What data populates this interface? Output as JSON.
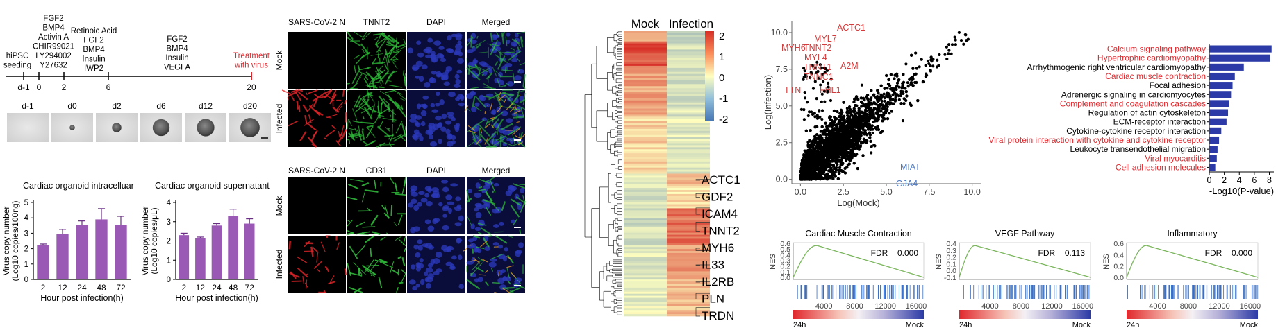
{
  "timeline": {
    "days": [
      "d-1",
      "0",
      "2",
      "6",
      "20"
    ],
    "day_positions": [
      -1,
      0,
      2,
      6,
      20
    ],
    "stage_labels": [
      [
        "hiPSC",
        "seeding"
      ],
      [
        "FGF2",
        "BMP4",
        "Activin A",
        "CHIR99021",
        "LY294002",
        "Y27632"
      ],
      [
        "Retinoic Acid",
        "FGF2",
        "BMP4",
        "Insulin",
        "IWP2"
      ],
      [
        "FGF2",
        "BMP4",
        "Insulin",
        "VEGFA"
      ]
    ],
    "treatment": [
      "Treatment",
      "with virus"
    ],
    "photo_labels": [
      "d-1",
      "d0",
      "d2",
      "d6",
      "d12",
      "d20"
    ],
    "photo_sizes": [
      0,
      0.18,
      0.32,
      0.58,
      0.6,
      0.66
    ]
  },
  "chart_data": [
    {
      "type": "bar",
      "title": "Cardiac organoid intracelluar",
      "ylabel": "Virus copy number",
      "ylabel2": "(Log10 copies/100ng)",
      "xlabel": "Hour post infection(h)",
      "categories": [
        "2",
        "12",
        "24",
        "48",
        "72"
      ],
      "values": [
        2.25,
        2.95,
        3.55,
        3.9,
        3.55
      ],
      "errors": [
        0.05,
        0.3,
        0.25,
        0.7,
        0.55
      ],
      "ylim": [
        0,
        5
      ],
      "yticks": [
        "0",
        "1",
        "2",
        "3",
        "4",
        "5"
      ],
      "bar_color": "#9b59b6"
    },
    {
      "type": "bar",
      "title": "Cardiac organoid supernatant",
      "ylabel": "Virus copy number",
      "ylabel2": "(Log10 copies/μL)",
      "xlabel": "Hour post infection(h)",
      "categories": [
        "2",
        "12",
        "24",
        "48",
        "72"
      ],
      "values": [
        2.3,
        2.15,
        2.8,
        3.3,
        2.9
      ],
      "errors": [
        0.1,
        0.05,
        0.1,
        0.35,
        0.25
      ],
      "ylim": [
        0,
        4
      ],
      "yticks": [
        "0",
        "1",
        "2",
        "3",
        "4"
      ],
      "bar_color": "#9b59b6"
    },
    {
      "type": "heatmap",
      "columns": [
        "Mock",
        "Infection"
      ],
      "colorbar_ticks": [
        "2",
        "1",
        "0",
        "-1",
        "-2"
      ],
      "colors": {
        "high": "#d73027",
        "mid": "#ffffbf",
        "low": "#4575b4"
      },
      "genes": [
        "ACTC1",
        "GDF2",
        "ICAM4",
        "TNNT2",
        "MYH6",
        "IL33",
        "IL2RB",
        "PLN",
        "TRDN"
      ],
      "bands": [
        {
          "from": 0.0,
          "to": 0.03,
          "mock": 0.6,
          "inf": -0.6
        },
        {
          "from": 0.03,
          "to": 0.12,
          "mock": 1.7,
          "inf": -0.5
        },
        {
          "from": 0.12,
          "to": 0.3,
          "mock": 0.9,
          "inf": -0.4
        },
        {
          "from": 0.3,
          "to": 0.5,
          "mock": 0.4,
          "inf": -0.3
        },
        {
          "from": 0.5,
          "to": 0.53,
          "mock": -0.1,
          "inf": 0.9
        },
        {
          "from": 0.53,
          "to": 0.62,
          "mock": -0.4,
          "inf": 0.3
        },
        {
          "from": 0.62,
          "to": 0.75,
          "mock": -0.5,
          "inf": 1.4
        },
        {
          "from": 0.75,
          "to": 0.87,
          "mock": -0.3,
          "inf": 1.0
        },
        {
          "from": 0.87,
          "to": 1.0,
          "mock": -0.2,
          "inf": 0.6
        }
      ],
      "gene_rows": [
        0.52,
        0.57,
        0.62,
        0.67,
        0.77,
        0.82,
        0.88,
        0.92,
        0.97
      ]
    },
    {
      "type": "scatter",
      "xlabel": "Log(Mock)",
      "ylabel": "Log(Infection)",
      "xlim": [
        -0.5,
        10.5
      ],
      "ylim": [
        -0.3,
        10.8
      ],
      "xticks": [
        "0.0",
        "2.5",
        "5.0",
        "7.5",
        "10.0"
      ],
      "yticks": [
        "0.0",
        "2.5",
        "5.0",
        "7.5",
        "10.0"
      ],
      "labels_up": [
        "ACTC1",
        "MYL7",
        "MYH6",
        "TNNT2",
        "MYL4",
        "TNNT1",
        "TNNC1",
        "A2M",
        "TTN",
        "FHL1"
      ],
      "labels_down": [
        "MIAT",
        "GJA4"
      ]
    },
    {
      "type": "bar",
      "orientation": "horizontal",
      "xlabel": "-Log10(P-value)",
      "xticks": [
        "0",
        "2",
        "4",
        "6",
        "8"
      ],
      "xlim": [
        0,
        8.6
      ],
      "categories": [
        "Calcium signaling pathway",
        "Hypertrophic cardiomyopathy",
        "Arrhythmogenic right ventricular cardiomyopathy",
        "Cardiac muscle contraction",
        "Focal adhesion",
        "Adrenergic signaling in cardiomyocytes",
        "Complement and coagulation cascades",
        "Regulation of actin cytoskeleton",
        "ECM-receptor interaction",
        "Cytokine-cytokine receptor interaction",
        "Viral protein interaction with cytokine and cytokine receptor",
        "Leukocyte transendothelial migration",
        "Viral myocarditis",
        "Cell adhesion molecules"
      ],
      "values": [
        8.3,
        8.1,
        4.6,
        3.4,
        3.1,
        2.9,
        2.6,
        2.5,
        2.3,
        1.6,
        1.3,
        1.1,
        1.0,
        0.8
      ],
      "highlight": [
        true,
        true,
        false,
        true,
        false,
        false,
        true,
        false,
        false,
        false,
        true,
        false,
        true,
        true
      ],
      "bar_color": "#2b3aa6",
      "highlight_color": "#e0282d"
    },
    {
      "type": "line",
      "title": "Cardiac Muscle Contraction",
      "fdr": "FDR = 0.000",
      "ylabel": "NES",
      "yticks": [
        "0.6",
        "0.5",
        "0.4",
        "0.3",
        "0.2",
        "0.1",
        "0.0"
      ],
      "xticks": [
        "4000",
        "8000",
        "12000",
        "16000"
      ],
      "ends": [
        "24h",
        "Mock"
      ],
      "peak": 0.62,
      "peak_at": 0.18,
      "end": 0.02
    },
    {
      "type": "line",
      "title": "VEGF Pathway",
      "fdr": "FDR = 0.113",
      "ylabel": "NES",
      "yticks": [
        "0.4",
        "0.3",
        "0.2",
        "0.1",
        "0.0",
        "-0.1"
      ],
      "xticks": [
        "4000",
        "8000",
        "12000",
        "16000"
      ],
      "ends": [
        "24h",
        "Mock"
      ],
      "peak": 0.42,
      "peak_at": 0.12,
      "end": 0.0
    },
    {
      "type": "line",
      "title": "Inflammatory",
      "fdr": "FDR = 0.000",
      "ylabel": "NES",
      "yticks": [
        "0.6",
        "0.4",
        "0.2",
        "0.0"
      ],
      "xticks": [
        "4000",
        "8000",
        "12000",
        "16000"
      ],
      "ends": [
        "24h",
        "Mock"
      ],
      "peak": 0.62,
      "peak_at": 0.15,
      "end": 0.02
    }
  ],
  "microscopy": {
    "top_headers": [
      "SARS-CoV-2 N",
      "TNNT2",
      "DAPI",
      "Merged"
    ],
    "bottom_headers": [
      "SARS-CoV-2 N",
      "CD31",
      "DAPI",
      "Merged"
    ],
    "row_labels": [
      "Mock",
      "Infected",
      "Mock",
      "Infected"
    ]
  }
}
